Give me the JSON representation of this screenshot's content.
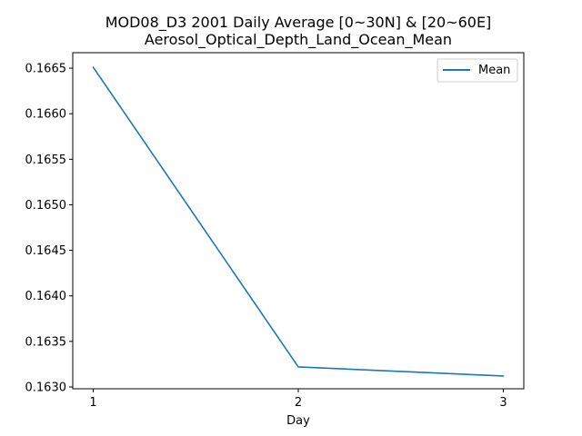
{
  "chart_data": {
    "type": "line",
    "title": "MOD08_D3 2001 Daily Average [0~30N] & [20~60E]",
    "subtitle": "Aerosol_Optical_Depth_Land_Ocean_Mean",
    "xlabel": "Day",
    "ylabel": "",
    "x": [
      1,
      2,
      3
    ],
    "x_ticks": [
      "1",
      "2",
      "3"
    ],
    "y_ticks": [
      "0.1630",
      "0.1635",
      "0.1640",
      "0.1645",
      "0.1650",
      "0.1655",
      "0.1660",
      "0.1665"
    ],
    "xlim": [
      0.9,
      3.1
    ],
    "ylim": [
      0.16298,
      0.16667
    ],
    "series": [
      {
        "name": "Mean",
        "values": [
          0.16651,
          0.16322,
          0.16312
        ],
        "color": "#1f77b4"
      }
    ],
    "legend": "top-right",
    "grid": false
  }
}
